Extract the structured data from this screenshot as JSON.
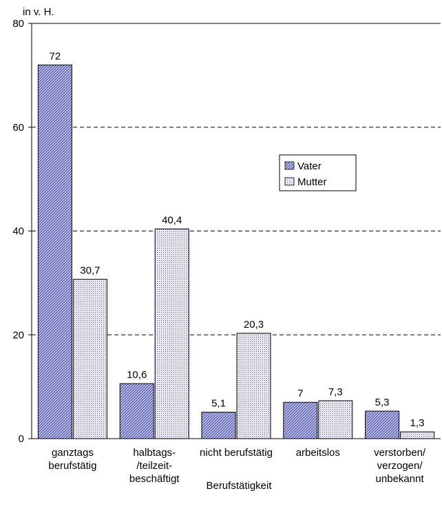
{
  "chart_data": {
    "type": "bar",
    "title": "",
    "ylabel": "in v. H.",
    "xlabel": "Berufstätigkeit",
    "ylim": [
      0,
      80
    ],
    "yticks": [
      0,
      20,
      40,
      60,
      80
    ],
    "grid": "dashed horizontal lines at major ticks",
    "legend_position": "center-right",
    "categories": [
      [
        "ganztags",
        "berufstätig"
      ],
      [
        "halbtags-",
        "/teilzeit-",
        "beschäftigt"
      ],
      [
        "nicht berufstätig"
      ],
      [
        "arbeitslos"
      ],
      [
        "verstorben/",
        "verzogen/",
        "unbekannt"
      ]
    ],
    "series": [
      {
        "name": "Vater",
        "values": [
          72,
          10.6,
          5.1,
          7,
          5.3
        ],
        "labels": [
          "72",
          "10,6",
          "5,1",
          "7",
          "5,3"
        ],
        "color": "#4b4fa8",
        "pattern": "diagonal-hatch"
      },
      {
        "name": "Mutter",
        "values": [
          30.7,
          40.4,
          20.3,
          7.3,
          1.3
        ],
        "labels": [
          "30,7",
          "40,4",
          "20,3",
          "7,3",
          "1,3"
        ],
        "color": "#3a3a9a",
        "pattern": "dots"
      }
    ]
  }
}
